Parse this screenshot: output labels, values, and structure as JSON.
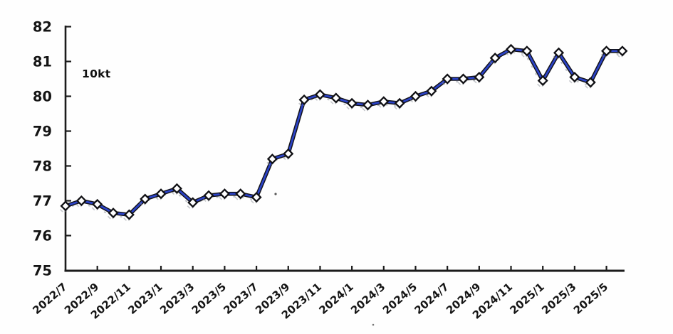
{
  "chart_data": {
    "type": "line",
    "title": "",
    "unit_label": "10kt",
    "xlabel": "",
    "ylabel": "",
    "grid": false,
    "legend_position": "none",
    "ylim": [
      75,
      82
    ],
    "y_ticks": [
      75,
      76,
      77,
      78,
      79,
      80,
      81,
      82
    ],
    "x": [
      "2022/7",
      "2022/8",
      "2022/9",
      "2022/10",
      "2022/11",
      "2022/12",
      "2023/1",
      "2023/2",
      "2023/3",
      "2023/4",
      "2023/5",
      "2023/6",
      "2023/7",
      "2023/8",
      "2023/9",
      "2023/10",
      "2023/11",
      "2023/12",
      "2024/1",
      "2024/2",
      "2024/3",
      "2024/4",
      "2024/5",
      "2024/6",
      "2024/7",
      "2024/8",
      "2024/9",
      "2024/10",
      "2024/11",
      "2024/12",
      "2025/1",
      "2025/2",
      "2025/3",
      "2025/4",
      "2025/5",
      "2025/6"
    ],
    "x_tick_labels": [
      "2022/7",
      "2022/9",
      "2022/11",
      "2023/1",
      "2023/3",
      "2023/5",
      "2023/7",
      "2023/9",
      "2023/11",
      "2024/1",
      "2024/3",
      "2024/5",
      "2024/7",
      "2024/9",
      "2024/11",
      "2025/1",
      "2025/3",
      "2025/5"
    ],
    "values": [
      76.85,
      77.0,
      76.9,
      76.65,
      76.6,
      77.05,
      77.2,
      77.35,
      76.95,
      77.15,
      77.2,
      77.2,
      77.1,
      78.2,
      78.35,
      79.9,
      80.05,
      79.95,
      79.8,
      79.75,
      79.85,
      79.8,
      80.0,
      80.15,
      80.5,
      80.5,
      80.55,
      81.1,
      81.35,
      81.3,
      80.45,
      81.25,
      80.55,
      80.4,
      81.3,
      81.3
    ],
    "line_color": "#2b43c8",
    "line_outline_color": "#13131b",
    "marker_shape": "diamond",
    "marker_fill": "#ffffff",
    "marker_stroke": "#101014",
    "ghost_color": "#8d929a",
    "axis_color": "#1b1b1b",
    "text_color": "#141414"
  }
}
